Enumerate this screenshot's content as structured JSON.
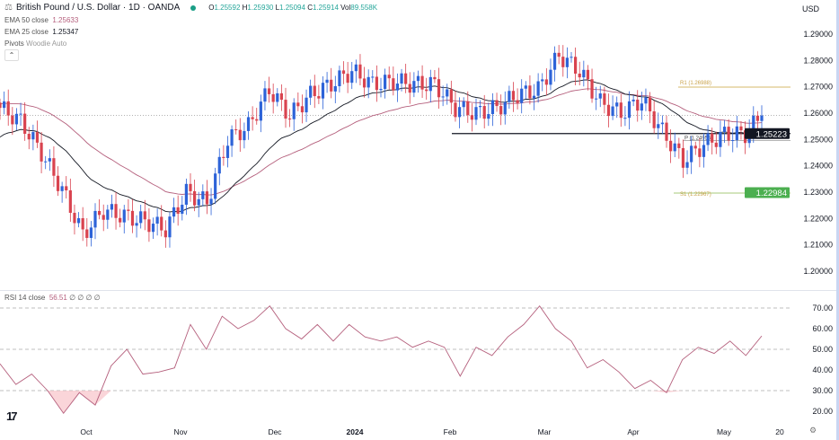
{
  "header": {
    "symbol_title": "British Pound / U.S. Dollar · 1D · OANDA",
    "open_label": "O",
    "open": "1.25592",
    "high_label": "H",
    "high": "1.25930",
    "low_label": "L",
    "low": "1.25094",
    "close_label": "C",
    "close": "1.25914",
    "volume_label": "Vol",
    "volume": "89.558K",
    "currency": "USD",
    "collapse_icon": "chevron-up-icon"
  },
  "indicators": {
    "ema50": {
      "label": "EMA 50 close",
      "value": "1.25633",
      "color": "#b5607d"
    },
    "ema25": {
      "label": "EMA 25 close",
      "value": "1.25347",
      "color": "#131722"
    },
    "pivots": {
      "label": "Pivots",
      "value": "Woodie Auto"
    },
    "rsi": {
      "label": "RSI 14 close",
      "value": "56.51",
      "flags": "∅ ∅ ∅ ∅",
      "color": "#b5607d"
    }
  },
  "colors": {
    "up": "#2d63d8",
    "down": "#d9434f",
    "support_label": "#131722",
    "s1_label": "#4caf50",
    "pivot_line": "#d6b86a"
  },
  "chart_data": [
    {
      "type": "candlestick",
      "title": "British Pound / U.S. Dollar · 1D · OANDA",
      "ylim": [
        1.195,
        1.295
      ],
      "y_ticks": [
        "1.29000",
        "1.28000",
        "1.27000",
        "1.26000",
        "1.25000",
        "1.24000",
        "1.23000",
        "1.22000",
        "1.21000",
        "1.20000"
      ],
      "x_ticks": [
        "Oct",
        "Nov",
        "Dec",
        "2024",
        "Feb",
        "Mar",
        "Apr",
        "May",
        "20"
      ],
      "weekly_closes": [
        1.262,
        1.257,
        1.245,
        1.231,
        1.214,
        1.223,
        1.221,
        1.219,
        1.216,
        1.23,
        1.226,
        1.25,
        1.255,
        1.269,
        1.259,
        1.267,
        1.271,
        1.276,
        1.271,
        1.272,
        1.271,
        1.271,
        1.262,
        1.26,
        1.262,
        1.267,
        1.269,
        1.282,
        1.276,
        1.264,
        1.26,
        1.265,
        1.253,
        1.242,
        1.248,
        1.252,
        1.252,
        1.2591
      ],
      "period_low": 1.2037,
      "period_high": 1.2893,
      "levels": {
        "support": {
          "value": "1.25223"
        },
        "r1": {
          "label": "R1",
          "value": "1.26988"
        },
        "pivot": {
          "label": "P",
          "value": "1.24956"
        },
        "s1": {
          "label": "S1",
          "value": "1.22967"
        },
        "s1_tag": "1.22984",
        "support_tag": "1.25223"
      },
      "grid": false
    },
    {
      "type": "line",
      "title": "RSI 14 close",
      "ylim": [
        15,
        75
      ],
      "y_ticks": [
        "70.00",
        "60.00",
        "50.00",
        "40.00",
        "30.00",
        "20.00"
      ],
      "bands": [
        70,
        50,
        30
      ],
      "values": [
        43,
        33,
        38,
        30,
        19,
        29,
        23,
        42,
        50,
        38,
        39,
        41,
        62,
        50,
        66,
        60,
        64,
        71,
        60,
        55,
        62,
        54,
        62,
        56,
        54,
        56,
        51,
        54,
        51,
        37,
        51,
        47,
        56,
        62,
        71,
        60,
        54,
        41,
        45,
        39,
        31,
        35,
        29,
        45,
        51,
        48,
        54,
        47,
        56.5
      ]
    }
  ]
}
